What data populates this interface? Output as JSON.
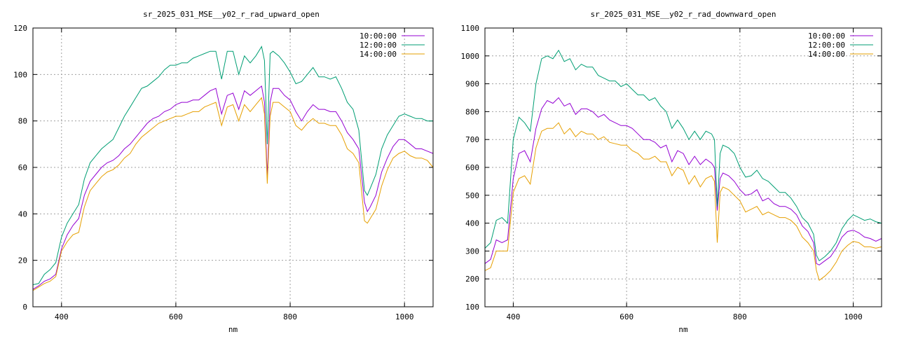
{
  "chart_data": [
    {
      "type": "line",
      "title": "sr_2025_031_MSE__y02_r_rad_upward_open",
      "xlabel": "nm",
      "ylabel": "",
      "xlim": [
        350,
        1050
      ],
      "ylim": [
        0,
        120
      ],
      "xticks": [
        400,
        600,
        800,
        1000
      ],
      "yticks": [
        0,
        20,
        40,
        60,
        80,
        100,
        120
      ],
      "grid": true,
      "legend": "top-right",
      "x": [
        350,
        360,
        370,
        380,
        390,
        400,
        410,
        420,
        430,
        440,
        450,
        460,
        470,
        480,
        490,
        500,
        510,
        520,
        530,
        540,
        550,
        560,
        570,
        580,
        590,
        600,
        610,
        620,
        630,
        640,
        650,
        660,
        670,
        680,
        690,
        700,
        710,
        720,
        730,
        740,
        750,
        755,
        760,
        765,
        770,
        780,
        790,
        800,
        810,
        820,
        830,
        840,
        850,
        860,
        870,
        880,
        890,
        900,
        910,
        920,
        930,
        935,
        940,
        950,
        960,
        970,
        980,
        990,
        1000,
        1010,
        1020,
        1030,
        1040,
        1050
      ],
      "series": [
        {
          "name": "10:00:00",
          "color": "#9400d3",
          "values": [
            7.5,
            9,
            11,
            12,
            14,
            25,
            31,
            35,
            38,
            48,
            54,
            57,
            60,
            62,
            63,
            65,
            68,
            70,
            73,
            76,
            79,
            81,
            82,
            84,
            85,
            87,
            88,
            88,
            89,
            89,
            91,
            93,
            94,
            83,
            91,
            92,
            85,
            93,
            91,
            93,
            95,
            88,
            56,
            88,
            94,
            94,
            91,
            89,
            84,
            80,
            84,
            87,
            85,
            85,
            84,
            84,
            80,
            75,
            72,
            68,
            45,
            41,
            43,
            48,
            58,
            64,
            69,
            72,
            72,
            70,
            68,
            68,
            67,
            66
          ]
        },
        {
          "name": "12:00:00",
          "color": "#009e73",
          "values": [
            9.5,
            10,
            14,
            16,
            19,
            30,
            36,
            40,
            44,
            55,
            62,
            65,
            68,
            70,
            72,
            77,
            82,
            86,
            90,
            94,
            95,
            97,
            99,
            102,
            104,
            104,
            105,
            105,
            107,
            108,
            109,
            110,
            110,
            98,
            110,
            110,
            100,
            108,
            105,
            108,
            112,
            106,
            70,
            109,
            110,
            108,
            105,
            101,
            96,
            97,
            100,
            103,
            99,
            99,
            98,
            99,
            94,
            88,
            85,
            76,
            50,
            48,
            51,
            57,
            68,
            74,
            78,
            82,
            83,
            82,
            81,
            81,
            80,
            80
          ]
        },
        {
          "name": "14:00:00",
          "color": "#e69f00",
          "values": [
            7,
            8.5,
            10,
            11,
            13,
            24,
            28,
            31,
            32,
            43,
            50,
            53,
            56,
            58,
            59,
            61,
            64,
            66,
            70,
            73,
            75,
            77,
            79,
            80,
            81,
            82,
            82,
            83,
            84,
            84,
            86,
            87,
            88,
            78,
            86,
            87,
            80,
            87,
            84,
            87,
            90,
            83,
            53,
            82,
            88,
            88,
            86,
            84,
            78,
            76,
            79,
            81,
            79,
            79,
            78,
            78,
            74,
            68,
            66,
            62,
            37,
            36,
            38,
            42,
            52,
            59,
            64,
            66,
            67,
            65,
            64,
            64,
            63,
            60
          ]
        }
      ]
    },
    {
      "type": "line",
      "title": "sr_2025_031_MSE__y02_r_rad_downward_open",
      "xlabel": "nm",
      "ylabel": "",
      "xlim": [
        350,
        1050
      ],
      "ylim": [
        100,
        1100
      ],
      "xticks": [
        400,
        600,
        800,
        1000
      ],
      "yticks": [
        100,
        200,
        300,
        400,
        500,
        600,
        700,
        800,
        900,
        1000,
        1100
      ],
      "grid": true,
      "legend": "top-right",
      "x": [
        350,
        360,
        370,
        380,
        390,
        400,
        410,
        420,
        430,
        440,
        450,
        460,
        470,
        480,
        490,
        500,
        510,
        520,
        530,
        540,
        550,
        560,
        570,
        580,
        590,
        600,
        610,
        620,
        630,
        640,
        650,
        660,
        670,
        680,
        690,
        700,
        710,
        720,
        730,
        740,
        750,
        755,
        760,
        765,
        770,
        780,
        790,
        800,
        810,
        820,
        830,
        840,
        850,
        860,
        870,
        880,
        890,
        900,
        910,
        920,
        930,
        935,
        940,
        950,
        960,
        970,
        980,
        990,
        1000,
        1010,
        1020,
        1030,
        1040,
        1050
      ],
      "series": [
        {
          "name": "10:00:00",
          "color": "#9400d3",
          "values": [
            255,
            270,
            340,
            330,
            340,
            560,
            650,
            660,
            620,
            740,
            810,
            840,
            830,
            850,
            820,
            830,
            790,
            810,
            810,
            800,
            780,
            790,
            770,
            760,
            750,
            750,
            740,
            720,
            700,
            700,
            690,
            670,
            680,
            620,
            660,
            650,
            610,
            640,
            610,
            630,
            615,
            600,
            445,
            560,
            580,
            570,
            550,
            520,
            500,
            505,
            520,
            480,
            490,
            470,
            460,
            460,
            450,
            430,
            390,
            370,
            330,
            255,
            250,
            265,
            280,
            310,
            350,
            370,
            375,
            365,
            350,
            345,
            335,
            345
          ]
        },
        {
          "name": "12:00:00",
          "color": "#009e73",
          "values": [
            310,
            330,
            410,
            420,
            400,
            700,
            780,
            760,
            730,
            900,
            990,
            1000,
            990,
            1020,
            980,
            990,
            950,
            970,
            960,
            960,
            930,
            920,
            910,
            910,
            890,
            900,
            880,
            860,
            860,
            840,
            850,
            820,
            800,
            740,
            770,
            740,
            700,
            730,
            700,
            730,
            720,
            700,
            460,
            650,
            680,
            670,
            650,
            600,
            565,
            570,
            590,
            560,
            550,
            530,
            510,
            510,
            490,
            460,
            420,
            400,
            360,
            285,
            265,
            280,
            300,
            330,
            380,
            410,
            430,
            420,
            410,
            415,
            405,
            400
          ]
        },
        {
          "name": "14:00:00",
          "color": "#e69f00",
          "values": [
            230,
            240,
            300,
            300,
            300,
            510,
            560,
            570,
            540,
            670,
            730,
            740,
            740,
            760,
            720,
            740,
            710,
            730,
            720,
            720,
            700,
            710,
            690,
            685,
            680,
            680,
            660,
            650,
            630,
            630,
            640,
            620,
            620,
            570,
            600,
            590,
            540,
            570,
            530,
            560,
            570,
            550,
            330,
            510,
            530,
            520,
            500,
            480,
            440,
            450,
            460,
            430,
            440,
            430,
            420,
            420,
            410,
            390,
            350,
            330,
            300,
            230,
            195,
            210,
            230,
            260,
            300,
            320,
            335,
            330,
            315,
            315,
            310,
            315
          ]
        }
      ]
    }
  ]
}
